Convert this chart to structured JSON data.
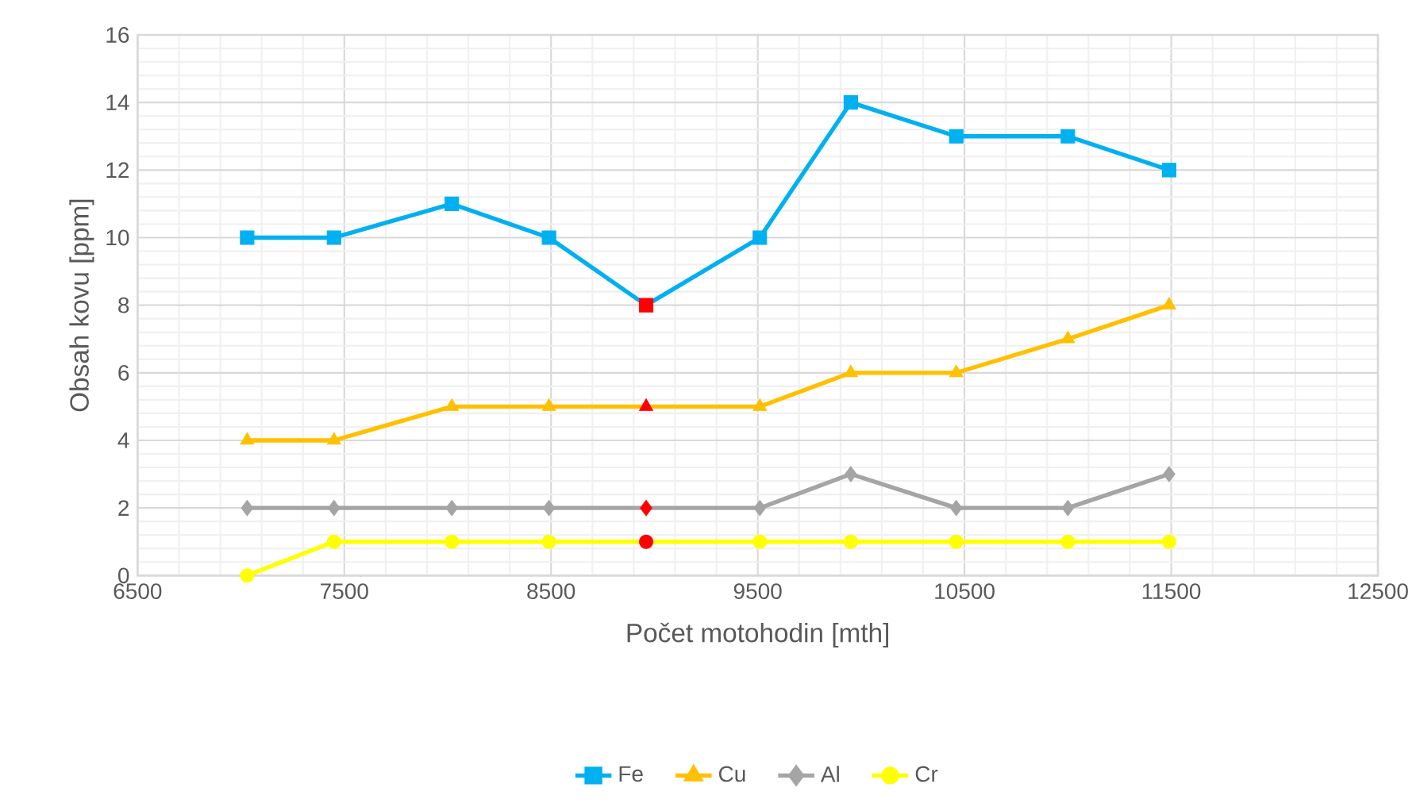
{
  "chart_data": {
    "type": "line",
    "xlabel": "Počet motohodin [mth]",
    "ylabel": "Obsah kovu [ppm]",
    "x": [
      7030,
      7450,
      8020,
      8490,
      8960,
      9510,
      9950,
      10460,
      11000,
      11490
    ],
    "xlim": [
      6500,
      12500
    ],
    "xticks": [
      6500,
      7500,
      8500,
      9500,
      10500,
      11500,
      12500
    ],
    "ylim": [
      0,
      16
    ],
    "yticks": [
      0,
      2,
      4,
      6,
      8,
      10,
      12,
      14,
      16
    ],
    "grid": true,
    "legend": "bottom",
    "line_style": "solid",
    "series": [
      {
        "name": "Fe",
        "color": "#00b0f0",
        "marker": "square",
        "values": [
          10,
          10,
          11,
          10,
          8,
          10,
          14,
          13,
          13,
          12
        ],
        "colors": [
          "#00b0f0",
          "#00b0f0",
          "#00b0f0",
          "#00b0f0",
          "#ff0000",
          "#00b0f0",
          "#00b0f0",
          "#00b0f0",
          "#00b0f0",
          "#00b0f0"
        ]
      },
      {
        "name": "Cu",
        "color": "#ffc000",
        "marker": "triangle",
        "values": [
          4,
          4,
          5,
          5,
          5,
          5,
          6,
          6,
          7,
          8
        ],
        "colors": [
          "#ffc000",
          "#ffc000",
          "#ffc000",
          "#ffc000",
          "#ff0000",
          "#ffc000",
          "#ffc000",
          "#ffc000",
          "#ffc000",
          "#ffc000"
        ]
      },
      {
        "name": "Al",
        "color": "#a5a5a5",
        "marker": "diamond",
        "values": [
          2,
          2,
          2,
          2,
          2,
          2,
          3,
          2,
          2,
          3
        ],
        "colors": [
          "#a5a5a5",
          "#a5a5a5",
          "#a5a5a5",
          "#a5a5a5",
          "#ff0000",
          "#a5a5a5",
          "#a5a5a5",
          "#a5a5a5",
          "#a5a5a5",
          "#a5a5a5"
        ]
      },
      {
        "name": "Cr",
        "color": "#ffff00",
        "marker": "circle",
        "values": [
          0,
          1,
          1,
          1,
          1,
          1,
          1,
          1,
          1,
          1
        ],
        "colors": [
          "#ffff00",
          "#ffff00",
          "#ffff00",
          "#ffff00",
          "#ff0000",
          "#ffff00",
          "#ffff00",
          "#ffff00",
          "#ffff00",
          "#ffff00"
        ]
      }
    ]
  }
}
